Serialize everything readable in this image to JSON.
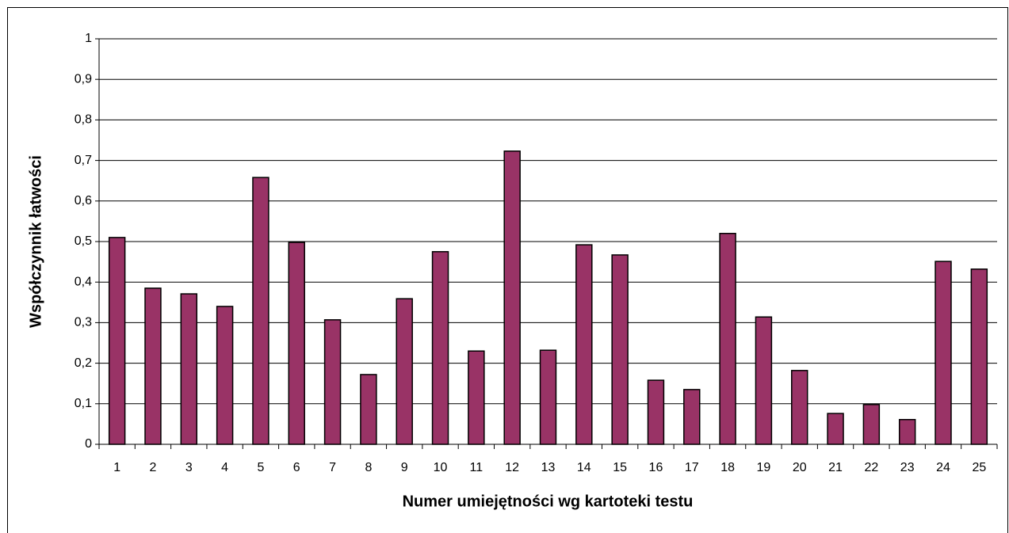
{
  "chart_data": {
    "type": "bar",
    "x_label": "Numer umiejętności wg kartoteki testu",
    "y_label": "Współczynnik łatwości",
    "categories": [
      "1",
      "2",
      "3",
      "4",
      "5",
      "6",
      "7",
      "8",
      "9",
      "10",
      "11",
      "12",
      "13",
      "14",
      "15",
      "16",
      "17",
      "18",
      "19",
      "20",
      "21",
      "22",
      "23",
      "24",
      "25"
    ],
    "values": [
      0.51,
      0.385,
      0.371,
      0.34,
      0.658,
      0.498,
      0.307,
      0.172,
      0.359,
      0.475,
      0.23,
      0.723,
      0.232,
      0.492,
      0.467,
      0.158,
      0.135,
      0.52,
      0.314,
      0.182,
      0.076,
      0.098,
      0.061,
      0.451,
      0.432
    ],
    "color": "#993366",
    "ylim": [
      0,
      1
    ],
    "yticks": [
      0,
      {
        "value": 0.1,
        "label": "0,1"
      },
      {
        "value": 0.2,
        "label": "0,2"
      },
      {
        "value": 0.3,
        "label": "0,3"
      },
      {
        "value": 0.4,
        "label": "0,4"
      },
      {
        "value": 0.5,
        "label": "0,5"
      },
      {
        "value": 0.6,
        "label": "0,6"
      },
      {
        "value": 0.7,
        "label": "0,7"
      },
      {
        "value": 0.8,
        "label": "0,8"
      },
      {
        "value": 0.9,
        "label": "0,9"
      },
      1
    ],
    "grid": true
  }
}
